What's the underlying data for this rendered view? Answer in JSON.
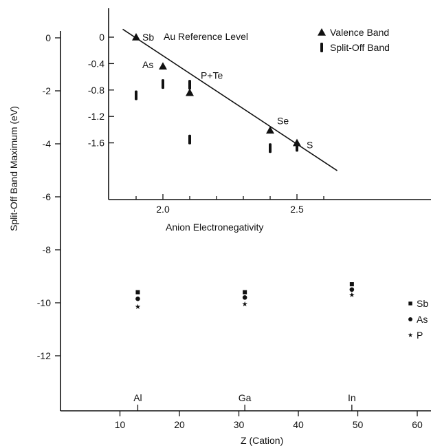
{
  "chart_data": [
    {
      "type": "scatter",
      "xlabel": "Z  (Cation)",
      "ylabel": "Split-Off Band Maximum (eV)",
      "xlim": [
        0,
        70
      ],
      "ylim": [
        -14,
        0.5
      ],
      "x_ticks": [
        "10",
        "20",
        "30",
        "40",
        "50",
        "60"
      ],
      "y_ticks": [
        "0",
        "-2",
        "-4",
        "-6",
        "-8",
        "-10",
        "-12"
      ],
      "category_labels": [
        {
          "text": "Al",
          "x": 13
        },
        {
          "text": "Ga",
          "x": 31
        },
        {
          "text": "In",
          "x": 49
        }
      ],
      "legend_position": "right",
      "series": [
        {
          "name": "Sb",
          "marker": "square",
          "points": [
            {
              "x": 13,
              "y": -9.6
            },
            {
              "x": 31,
              "y": -9.6
            },
            {
              "x": 49,
              "y": -9.3
            }
          ]
        },
        {
          "name": "As",
          "marker": "circle",
          "points": [
            {
              "x": 13,
              "y": -9.85
            },
            {
              "x": 31,
              "y": -9.8
            },
            {
              "x": 49,
              "y": -9.5
            }
          ]
        },
        {
          "name": "P",
          "marker": "star",
          "points": [
            {
              "x": 13,
              "y": -10.15
            },
            {
              "x": 31,
              "y": -10.05
            },
            {
              "x": 49,
              "y": -9.7
            }
          ]
        }
      ]
    },
    {
      "type": "scatter",
      "xlabel": "Anion Electronegativity",
      "ylabel": "",
      "xlim": [
        1.8,
        2.95
      ],
      "ylim": [
        -2.35,
        0.15
      ],
      "x_ticks": [
        "2.0",
        "2.5"
      ],
      "y_ticks": [
        "0",
        "-0.4",
        "-0.8",
        "-1.2",
        "-1.6"
      ],
      "annotation": "Au Reference Level",
      "legend_position": "top-right",
      "series": [
        {
          "name": "Valence Band",
          "marker": "triangle",
          "points": [
            {
              "x": 1.9,
              "y": 0.0,
              "label": "Sb"
            },
            {
              "x": 2.0,
              "y": -0.44,
              "label": "As"
            },
            {
              "x": 2.1,
              "y": -0.84,
              "label": "P+Te"
            },
            {
              "x": 2.4,
              "y": -1.41,
              "label": "Se"
            },
            {
              "x": 2.5,
              "y": -1.6,
              "label": "S"
            }
          ]
        },
        {
          "name": "Split-Off Band",
          "marker": "bar",
          "points": [
            {
              "x": 1.9,
              "y": -0.88
            },
            {
              "x": 2.0,
              "y": -0.71
            },
            {
              "x": 2.1,
              "y": -0.72
            },
            {
              "x": 2.1,
              "y": -1.55
            },
            {
              "x": 2.4,
              "y": -1.68
            },
            {
              "x": 2.5,
              "y": -1.66
            }
          ]
        }
      ],
      "trend_line": {
        "x": [
          1.85,
          2.65
        ],
        "y": [
          0.12,
          -2.02
        ]
      }
    }
  ]
}
